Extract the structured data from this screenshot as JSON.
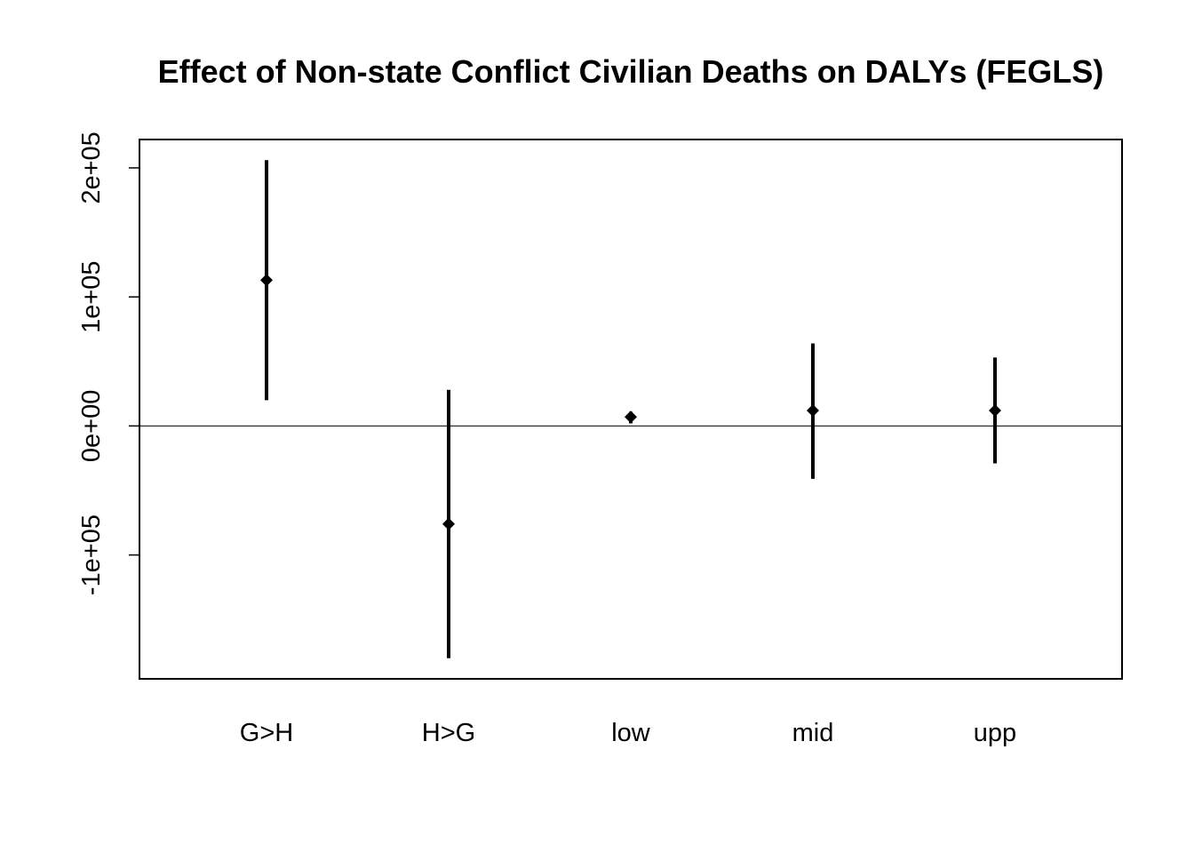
{
  "chart_data": {
    "type": "scatter",
    "title": "Effect of Non-state Conflict Civilian Deaths on DALYs (FEGLS)",
    "xlabel": "",
    "ylabel": "",
    "categories": [
      "G>H",
      "H>G",
      "low",
      "mid",
      "upp"
    ],
    "series": [
      {
        "estimate": [
          113000,
          -76000,
          7000,
          12000,
          12000
        ],
        "lower": [
          20000,
          -180000,
          2000,
          -41000,
          -29000
        ],
        "upper": [
          206000,
          28000,
          11000,
          64000,
          53000
        ]
      }
    ],
    "reference_line": 0,
    "ylim": [
      -196000,
      222000
    ],
    "yticks": [
      -100000,
      0,
      100000,
      200000
    ],
    "ytick_labels": [
      "-1e+05",
      "0e+00",
      "1e+05",
      "2e+05"
    ],
    "grid": false,
    "legend": "none"
  }
}
